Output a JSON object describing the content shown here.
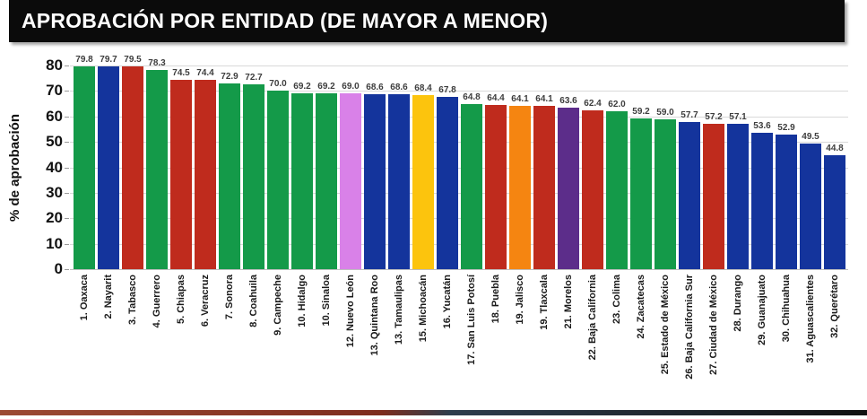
{
  "title": "APROBACIÓN POR ENTIDAD (DE MAYOR A MENOR)",
  "chart_data": {
    "type": "bar",
    "title": "APROBACIÓN POR ENTIDAD (DE MAYOR A MENOR)",
    "xlabel": "",
    "ylabel": "% de aprobación",
    "ylim": [
      0,
      80
    ],
    "yticks": [
      0,
      10,
      20,
      30,
      40,
      50,
      60,
      70,
      80
    ],
    "grid": true,
    "legend": "none",
    "value_labels": true,
    "categories": [
      "1. Oaxaca",
      "2. Nayarit",
      "3. Tabasco",
      "4. Guerrero",
      "5. Chiapas",
      "6. Veracruz",
      "7. Sonora",
      "8. Coahuila",
      "9. Campeche",
      "10. Hidalgo",
      "10. Sinaloa",
      "12. Nuevo León",
      "13. Quintana Roo",
      "13. Tamaulipas",
      "15. Michoacán",
      "16. Yucatán",
      "17. San Luis Potosí",
      "18. Puebla",
      "19. Jalisco",
      "19. Tlaxcala",
      "21. Morelos",
      "22. Baja California",
      "23. Colima",
      "24. Zacatecas",
      "25. Estado de México",
      "26. Baja California Sur",
      "27. Ciudad de México",
      "28. Durango",
      "29. Guanajuato",
      "30. Chihuahua",
      "31. Aguascalientes",
      "32. Querétaro"
    ],
    "values": [
      79.8,
      79.7,
      79.5,
      78.3,
      74.5,
      74.4,
      72.9,
      72.7,
      70.0,
      69.2,
      69.2,
      69.0,
      68.6,
      68.6,
      68.4,
      67.8,
      64.8,
      64.4,
      64.1,
      64.1,
      63.6,
      62.4,
      62.0,
      59.2,
      59.0,
      57.7,
      57.2,
      57.1,
      53.6,
      52.9,
      49.5,
      44.8
    ],
    "bar_colors": [
      "green",
      "blue",
      "red",
      "green",
      "red",
      "red",
      "green",
      "green",
      "green",
      "green",
      "green",
      "violet",
      "blue",
      "blue",
      "yellow",
      "blue",
      "green",
      "red",
      "orange",
      "red",
      "purple",
      "red",
      "green",
      "green",
      "green",
      "blue",
      "red",
      "blue",
      "blue",
      "blue",
      "blue",
      "blue"
    ],
    "palette": {
      "green": "#149a49",
      "blue": "#14349c",
      "red": "#bf2b1d",
      "violet": "#d981e8",
      "yellow": "#fcc40d",
      "orange": "#f58511",
      "purple": "#5c2d8a"
    }
  },
  "footer": {
    "gradient_left": "#9c4a33",
    "gradient_mid_left": "#7e2c1d",
    "gradient_mid_right": "#2e3d4d",
    "gradient_right": "#111111"
  }
}
